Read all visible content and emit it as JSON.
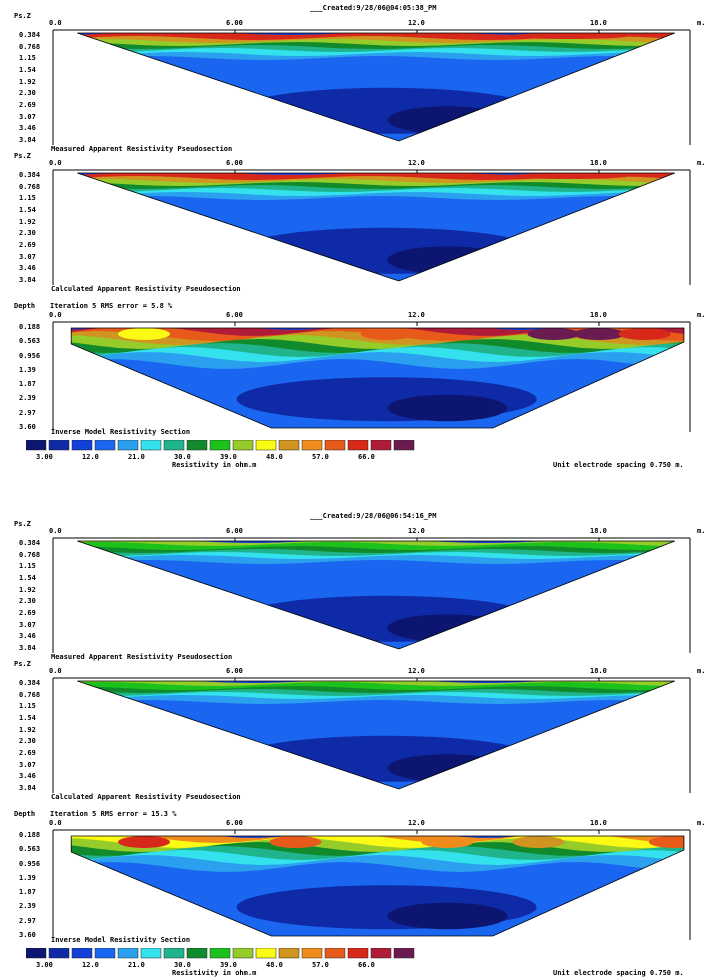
{
  "colors": {
    "scale": [
      "#0c1670",
      "#0f2aa6",
      "#1240d8",
      "#1a66f0",
      "#2aa0ef",
      "#34e2ee",
      "#20b48c",
      "#118a2c",
      "#1cc21c",
      "#96cc2a",
      "#fafa14",
      "#d09420",
      "#f08c1c",
      "#e85a1a",
      "#d8281a",
      "#b01c38",
      "#6a1c52"
    ],
    "black": "#000000"
  },
  "common": {
    "x_ticks": [
      "0.0",
      "6.00",
      "12.0",
      "18.0"
    ],
    "x_unit": "m.",
    "psz_label": "Ps.Z",
    "psz_ticks": [
      "0.384",
      "0.768",
      "1.15",
      "1.54",
      "1.92",
      "2.30",
      "2.69",
      "3.07",
      "3.46",
      "3.84"
    ],
    "depth_label": "Depth",
    "depth_ticks": [
      "0.188",
      "0.563",
      "0.956",
      "1.39",
      "1.87",
      "2.39",
      "2.97",
      "3.60"
    ],
    "measured_label": "Measured Apparent Resistivity Pseudosection",
    "calculated_label": "Calculated Apparent Resistivity Pseudosection",
    "inverse_label": "Inverse Model Resistivity Section",
    "legend_values": [
      "3.00",
      "12.0",
      "21.0",
      "30.0",
      "39.0",
      "48.0",
      "57.0",
      "66.0"
    ],
    "legend_unit": "Resistivity in ohm.m",
    "spacing": "Unit electrode spacing 0.750 m."
  },
  "figures": [
    {
      "created": "___Created:9/28/06@04:05:38_PM",
      "iteration": "Iteration 5 RMS error = 5.8 %"
    },
    {
      "created": "___Created:9/28/06@06:54:16_PM",
      "iteration": "Iteration 5 RMS error = 15.3 %"
    }
  ],
  "chart_data": [
    {
      "type": "heatmap",
      "title": "___Created:9/28/06@04:05:38_PM",
      "panels": [
        {
          "name": "Measured Apparent Resistivity Pseudosection",
          "xlabel": "m.",
          "ylabel": "Ps.Z",
          "xlim": [
            0,
            21
          ],
          "ylim": [
            3.84,
            0.384
          ],
          "dominant_ranges_ohm_m": {
            "shallow_x_10_to_20": [
              48,
              66
            ],
            "deep": [
              3,
              12
            ]
          }
        },
        {
          "name": "Calculated Apparent Resistivity Pseudosection",
          "xlabel": "m.",
          "ylabel": "Ps.Z",
          "xlim": [
            0,
            21
          ],
          "ylim": [
            3.84,
            0.384
          ]
        },
        {
          "name": "Inverse Model Resistivity Section",
          "iteration": 5,
          "rms_error_percent": 5.8,
          "xlabel": "m.",
          "ylabel": "Depth",
          "xlim": [
            0,
            21
          ],
          "ylim": [
            3.6,
            0.188
          ]
        }
      ],
      "legend": {
        "values": [
          3.0,
          12.0,
          21.0,
          30.0,
          39.0,
          48.0,
          57.0,
          66.0
        ],
        "unit": "Resistivity in ohm.m"
      },
      "electrode_spacing_m": 0.75
    },
    {
      "type": "heatmap",
      "title": "___Created:9/28/06@06:54:16_PM",
      "panels": [
        {
          "name": "Measured Apparent Resistivity Pseudosection",
          "xlabel": "m.",
          "ylabel": "Ps.Z",
          "xlim": [
            0,
            21
          ],
          "ylim": [
            3.84,
            0.384
          ]
        },
        {
          "name": "Calculated Apparent Resistivity Pseudosection",
          "xlabel": "m.",
          "ylabel": "Ps.Z",
          "xlim": [
            0,
            21
          ],
          "ylim": [
            3.84,
            0.384
          ]
        },
        {
          "name": "Inverse Model Resistivity Section",
          "iteration": 5,
          "rms_error_percent": 15.3,
          "xlabel": "m.",
          "ylabel": "Depth",
          "xlim": [
            0,
            21
          ],
          "ylim": [
            3.6,
            0.188
          ]
        }
      ],
      "legend": {
        "values": [
          3.0,
          12.0,
          21.0,
          30.0,
          39.0,
          48.0,
          57.0,
          66.0
        ],
        "unit": "Resistivity in ohm.m"
      },
      "electrode_spacing_m": 0.75
    }
  ]
}
